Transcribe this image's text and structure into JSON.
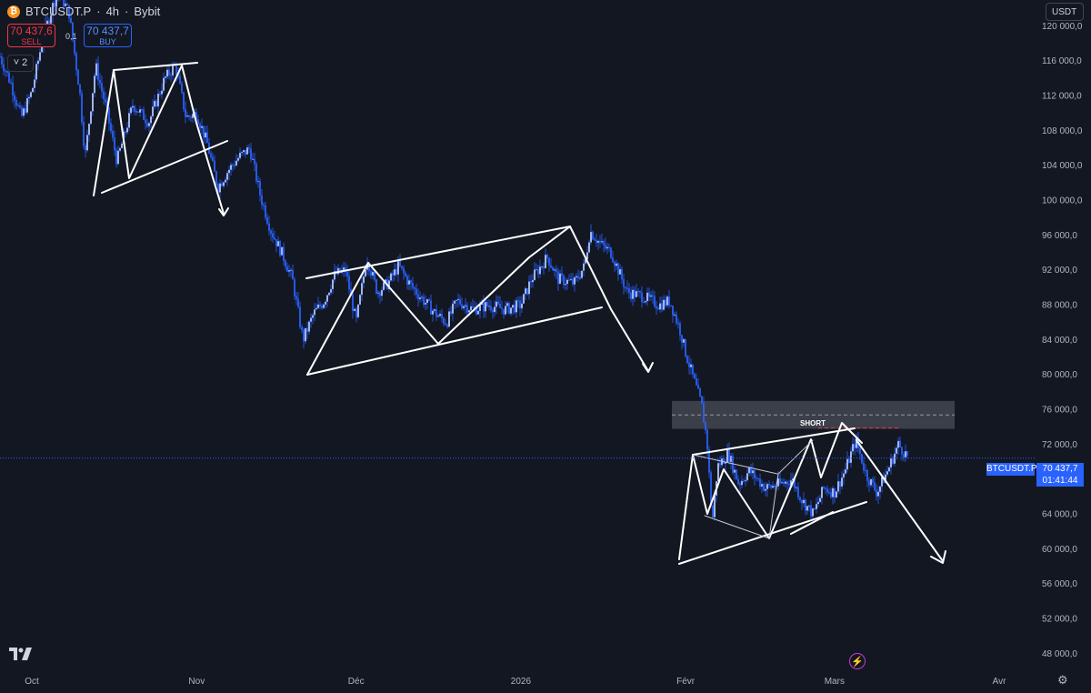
{
  "header": {
    "symbol": "BTCUSDT.P",
    "interval": "4h",
    "exchange": "Bybit",
    "separator": "·",
    "coin_badge": "₿",
    "sell_price": "70 437,6",
    "sell_label": "SELL",
    "buy_price": "70 437,7",
    "buy_label": "BUY",
    "spread": "0,1",
    "indicators_toggle": "˅ 2"
  },
  "currency": "USDT",
  "last_price_tag": {
    "symbol": "BTCUSDT.P",
    "price": "70 437,7",
    "countdown": "01:41:44"
  },
  "annotation": {
    "short_label": "SHORT"
  },
  "icons": [
    "bitcoin-icon",
    "chevron-down-icon",
    "tradingview-logo-icon",
    "lightning-icon",
    "settings-icon"
  ],
  "colors": {
    "background": "#131722",
    "candles": "#2962ff",
    "drawings": "#ffffff",
    "price_tag": "#2962ff",
    "zone": "#434651",
    "entry_line": "#f23645"
  },
  "chart_data": {
    "type": "candlestick",
    "title": "BTCUSDT.P · 4h · Bybit",
    "y_axis": {
      "unit": "USDT",
      "range": [
        46000,
        123000
      ],
      "ticks": [
        120000,
        116000,
        112000,
        108000,
        104000,
        100000,
        96000,
        92000,
        88000,
        84000,
        80000,
        76000,
        72000,
        68000,
        64000,
        60000,
        56000,
        52000,
        48000
      ],
      "tick_labels": [
        "120 000,0",
        "116 000,0",
        "112 000,0",
        "108 000,0",
        "104 000,0",
        "100 000,0",
        "96 000,0",
        "92 000,0",
        "88 000,0",
        "84 000,0",
        "80 000,0",
        "76 000,0",
        "72 000,0",
        "68 000,0",
        "64 000,0",
        "60 000,0",
        "56 000,0",
        "52 000,0",
        "48 000,0"
      ]
    },
    "x_axis": {
      "range": [
        "2025-09-25",
        "2026-04-08"
      ],
      "ticks": [
        {
          "date": "2025-10-01",
          "label": "Oct"
        },
        {
          "date": "2025-11-01",
          "label": "Nov"
        },
        {
          "date": "2025-12-01",
          "label": "Déc"
        },
        {
          "date": "2026-01-01",
          "label": "2026"
        },
        {
          "date": "2026-02-01",
          "label": "Févr"
        },
        {
          "date": "2026-03-01",
          "label": "Mars"
        },
        {
          "date": "2026-04-01",
          "label": "Avr"
        }
      ]
    },
    "last_price": 70437.7,
    "price_path": [
      [
        "2025-09-25",
        116500
      ],
      [
        "2025-09-27",
        113500
      ],
      [
        "2025-09-29",
        109500
      ],
      [
        "2025-10-01",
        112500
      ],
      [
        "2025-10-03",
        118500
      ],
      [
        "2025-10-05",
        122500
      ],
      [
        "2025-10-06",
        124000
      ],
      [
        "2025-10-08",
        121500
      ],
      [
        "2025-10-10",
        112500
      ],
      [
        "2025-10-11",
        105000
      ],
      [
        "2025-10-13",
        115500
      ],
      [
        "2025-10-15",
        110500
      ],
      [
        "2025-10-17",
        104500
      ],
      [
        "2025-10-20",
        111000
      ],
      [
        "2025-10-23",
        109000
      ],
      [
        "2025-10-26",
        114000
      ],
      [
        "2025-10-28",
        115500
      ],
      [
        "2025-10-30",
        109500
      ],
      [
        "2025-11-01",
        110000
      ],
      [
        "2025-11-03",
        106500
      ],
      [
        "2025-11-05",
        101500
      ],
      [
        "2025-11-07",
        103500
      ],
      [
        "2025-11-09",
        105000
      ],
      [
        "2025-11-11",
        106000
      ],
      [
        "2025-11-13",
        100500
      ],
      [
        "2025-11-15",
        96500
      ],
      [
        "2025-11-17",
        94000
      ],
      [
        "2025-11-19",
        91000
      ],
      [
        "2025-11-21",
        84000
      ],
      [
        "2025-11-23",
        87000
      ],
      [
        "2025-11-25",
        88500
      ],
      [
        "2025-11-27",
        91500
      ],
      [
        "2025-11-29",
        92000
      ],
      [
        "2025-12-01",
        86000
      ],
      [
        "2025-12-03",
        93500
      ],
      [
        "2025-12-05",
        89500
      ],
      [
        "2025-12-07",
        90500
      ],
      [
        "2025-12-09",
        92500
      ],
      [
        "2025-12-11",
        90500
      ],
      [
        "2025-12-13",
        89000
      ],
      [
        "2025-12-16",
        87000
      ],
      [
        "2025-12-18",
        86000
      ],
      [
        "2025-12-20",
        88500
      ],
      [
        "2025-12-23",
        87500
      ],
      [
        "2025-12-26",
        88000
      ],
      [
        "2025-12-29",
        87500
      ],
      [
        "2026-01-01",
        88000
      ],
      [
        "2026-01-03",
        91000
      ],
      [
        "2026-01-06",
        93500
      ],
      [
        "2026-01-08",
        91000
      ],
      [
        "2026-01-11",
        90500
      ],
      [
        "2026-01-13",
        92500
      ],
      [
        "2026-01-14",
        96500
      ],
      [
        "2026-01-16",
        95000
      ],
      [
        "2026-01-18",
        94000
      ],
      [
        "2026-01-21",
        89500
      ],
      [
        "2026-01-24",
        89000
      ],
      [
        "2026-01-27",
        88000
      ],
      [
        "2026-01-29",
        88500
      ],
      [
        "2026-01-31",
        85000
      ],
      [
        "2026-02-01",
        82500
      ],
      [
        "2026-02-03",
        78500
      ],
      [
        "2026-02-04",
        76500
      ],
      [
        "2026-02-05",
        72500
      ],
      [
        "2026-02-06",
        63000
      ],
      [
        "2026-02-07",
        69500
      ],
      [
        "2026-02-09",
        71000
      ],
      [
        "2026-02-11",
        67500
      ],
      [
        "2026-02-13",
        69000
      ],
      [
        "2026-02-16",
        67000
      ],
      [
        "2026-02-19",
        67500
      ],
      [
        "2026-02-21",
        68000
      ],
      [
        "2026-02-23",
        65500
      ],
      [
        "2026-02-25",
        64000
      ],
      [
        "2026-02-27",
        67000
      ],
      [
        "2026-03-01",
        66500
      ],
      [
        "2026-03-03",
        69000
      ],
      [
        "2026-03-05",
        72500
      ],
      [
        "2026-03-07",
        68500
      ],
      [
        "2026-03-09",
        66500
      ],
      [
        "2026-03-11",
        69000
      ],
      [
        "2026-03-13",
        72000
      ],
      [
        "2026-03-15",
        70437.7
      ]
    ]
  }
}
